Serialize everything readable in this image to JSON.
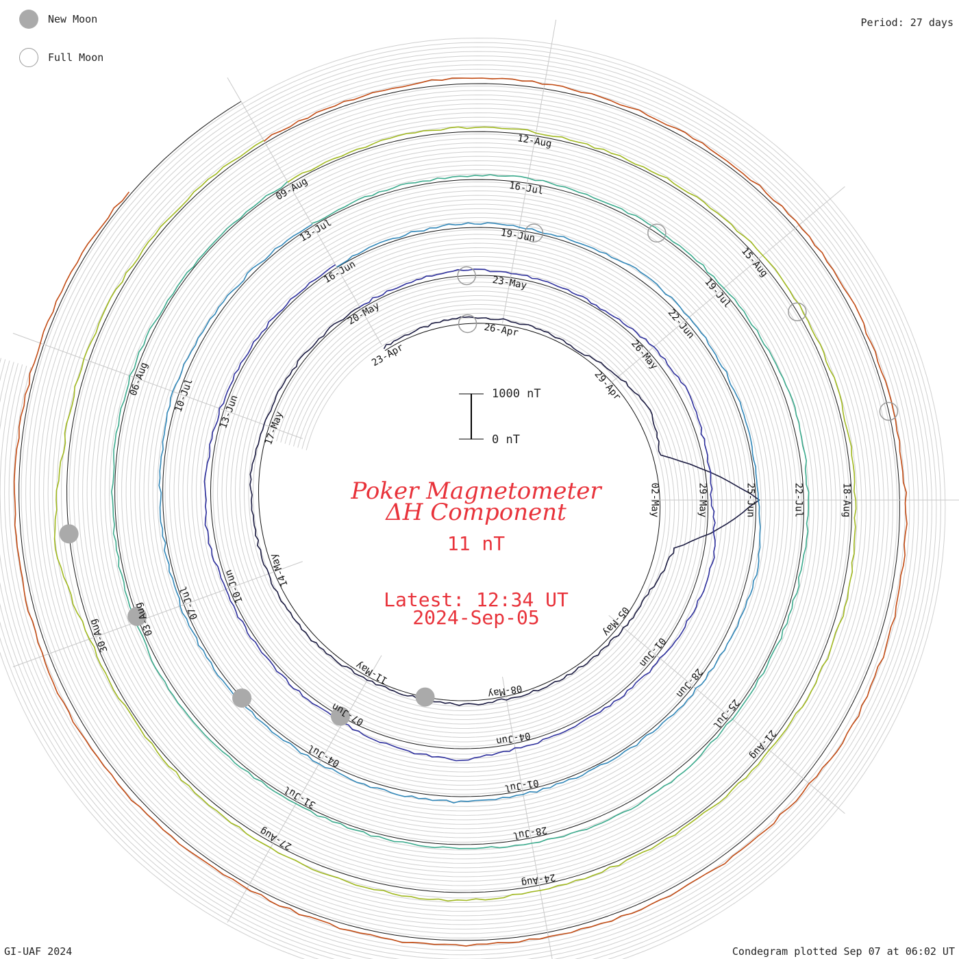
{
  "legend": {
    "new_moon": {
      "label": "New Moon",
      "color": "#aaaaaa"
    },
    "full_moon": {
      "label": "Full Moon",
      "color": "#9a9a9a"
    }
  },
  "period_label": "Period: 27 days",
  "footer_left": "GI-UAF 2024",
  "footer_right": "Condegram plotted Sep 07 at 06:02 UT",
  "title_line1": "Poker Magnetometer",
  "title_line2": "ΔH Component",
  "value_label": "11 nT",
  "latest_label": "Latest: 12:34 UT",
  "latest_date": "2024-Sep-05",
  "scale": {
    "top_label": "1000 nT",
    "bottom_label": "0 nT"
  },
  "chart_data": {
    "type": "line",
    "units": "nT",
    "period_days": 27,
    "grid": true,
    "series": [
      {
        "color": "#1a1a40",
        "date_labels": [
          "23-Apr",
          "26-Apr",
          "29-Apr",
          "02-May",
          "05-May",
          "08-May",
          "11-May",
          "14-May",
          "17-May"
        ],
        "values": [
          80,
          100,
          160,
          120,
          90,
          60,
          220,
          380,
          180,
          2400,
          450,
          200,
          120,
          90,
          80,
          70,
          90,
          60,
          60,
          110,
          130,
          150,
          160,
          200,
          120,
          90,
          70,
          60
        ]
      },
      {
        "color": "#2c2e9c",
        "date_labels": [
          "20-May",
          "23-May",
          "26-May",
          "29-May",
          "01-Jun",
          "04-Jun",
          "07-Jun",
          "10-Jun",
          "13-Jun"
        ],
        "values": [
          60,
          90,
          150,
          110,
          70,
          60,
          150,
          220,
          120,
          90,
          260,
          200,
          120,
          90,
          80,
          130,
          280,
          180,
          110,
          90,
          70,
          80,
          160,
          120,
          90,
          70,
          60,
          80
        ]
      },
      {
        "color": "#2f86b8",
        "date_labels": [
          "16-Jun",
          "19-Jun",
          "22-Jun",
          "25-Jun",
          "28-Jun",
          "01-Jul",
          "04-Jul",
          "07-Jul",
          "10-Jul"
        ],
        "values": [
          40,
          60,
          100,
          80,
          70,
          160,
          120,
          90,
          70,
          60,
          200,
          150,
          100,
          70,
          60,
          90,
          130,
          110,
          80,
          70,
          90,
          80,
          60,
          70,
          140,
          100,
          70,
          50
        ]
      },
      {
        "color": "#3aaa8c",
        "date_labels": [
          "13-Jul",
          "16-Jul",
          "19-Jul",
          "22-Jul",
          "25-Jul",
          "28-Jul",
          "31-Jul",
          "03-Aug",
          "06-Aug"
        ],
        "values": [
          50,
          70,
          90,
          110,
          80,
          70,
          60,
          90,
          140,
          100,
          80,
          70,
          60,
          120,
          180,
          120,
          90,
          70,
          60,
          70,
          100,
          80,
          70,
          60,
          80,
          60,
          50,
          60
        ]
      },
      {
        "color": "#a0b81e",
        "date_labels": [
          "09-Aug",
          "12-Aug",
          "15-Aug",
          "18-Aug",
          "21-Aug",
          "24-Aug",
          "27-Aug",
          "30-Aug"
        ],
        "values": [
          60,
          80,
          110,
          90,
          70,
          100,
          130,
          110,
          90,
          70,
          150,
          130,
          100,
          80,
          90,
          110,
          200,
          160,
          120,
          90,
          70,
          90,
          380,
          140,
          110,
          90,
          70,
          60
        ]
      },
      {
        "color": "#c24a12",
        "date_labels": [],
        "values": [
          70,
          90,
          140,
          120,
          100,
          80,
          130,
          110,
          90,
          160,
          200,
          260,
          180,
          150,
          120,
          100,
          130,
          110,
          90,
          140,
          170,
          130,
          110,
          90,
          80,
          70
        ]
      }
    ]
  }
}
